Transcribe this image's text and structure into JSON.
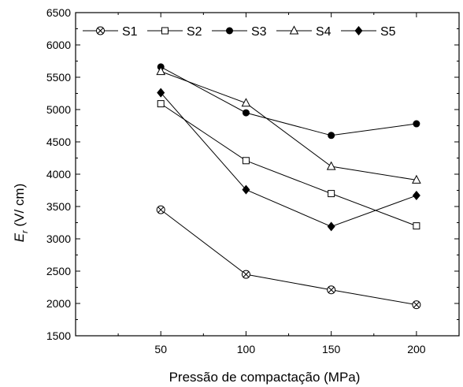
{
  "chart_data": {
    "type": "line",
    "xlabel": "Pressão de compactação (MPa)",
    "ylabel_main": "E",
    "ylabel_sub": "r",
    "ylabel_rest": " (V/ cm)",
    "x": [
      50,
      100,
      150,
      200
    ],
    "xlim": [
      0,
      225
    ],
    "ylim": [
      1500,
      6500
    ],
    "xticks": [
      50,
      100,
      150,
      200
    ],
    "yticks": [
      1500,
      2000,
      2500,
      3000,
      3500,
      4000,
      4500,
      5000,
      5500,
      6000,
      6500
    ],
    "legend_position": "top",
    "series": [
      {
        "name": "S1",
        "marker": "crossed-circle",
        "values": [
          3450,
          2450,
          2210,
          1980
        ]
      },
      {
        "name": "S2",
        "marker": "open-square",
        "values": [
          5090,
          4210,
          3700,
          3200
        ]
      },
      {
        "name": "S3",
        "marker": "filled-circle",
        "values": [
          5660,
          4950,
          4600,
          4780
        ]
      },
      {
        "name": "S4",
        "marker": "open-triangle",
        "values": [
          5590,
          5100,
          4120,
          3910
        ]
      },
      {
        "name": "S5",
        "marker": "filled-diamond",
        "values": [
          5260,
          3760,
          3190,
          3670
        ]
      }
    ]
  }
}
